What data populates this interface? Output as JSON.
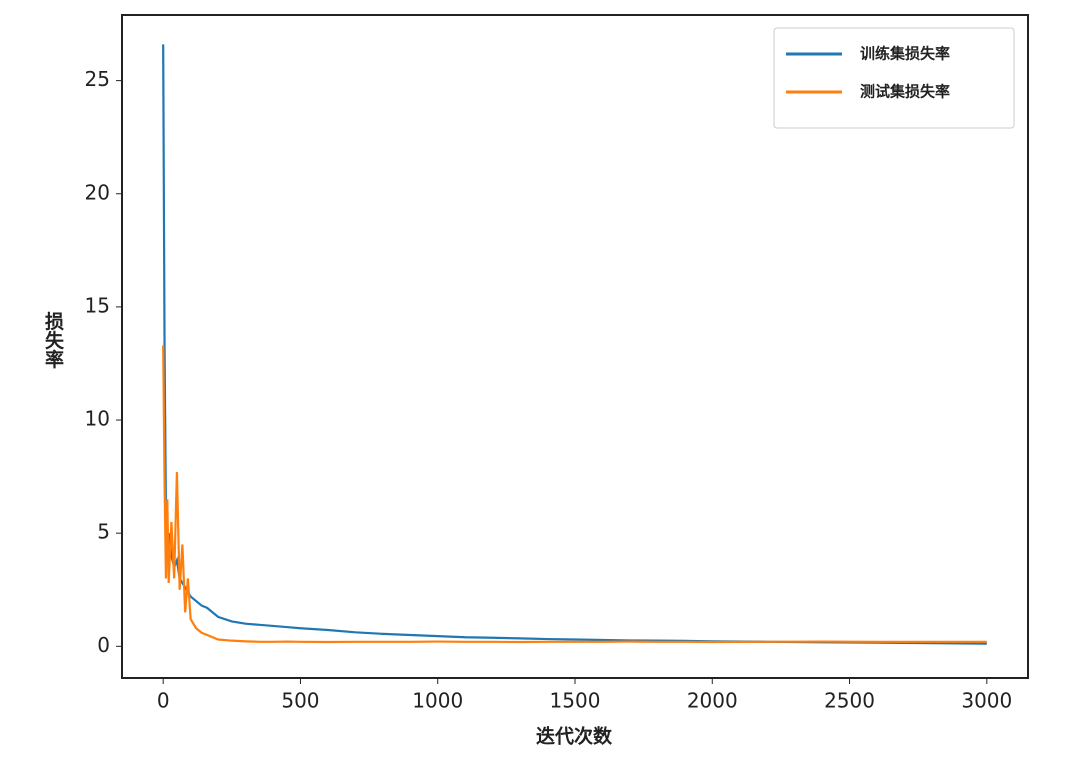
{
  "chart_data": {
    "type": "line",
    "xlabel": "迭代次数",
    "ylabel": "损失率",
    "x": [
      0,
      5,
      10,
      15,
      20,
      30,
      40,
      50,
      60,
      70,
      80,
      90,
      100,
      120,
      140,
      160,
      180,
      200,
      250,
      300,
      350,
      400,
      450,
      500,
      600,
      700,
      800,
      900,
      1000,
      1100,
      1200,
      1300,
      1400,
      1500,
      1600,
      1700,
      1800,
      1900,
      2000,
      2200,
      2400,
      2600,
      2800,
      3000
    ],
    "series": [
      {
        "name": "训练集损失率",
        "color": "#1f77b4",
        "values": [
          26.6,
          13.3,
          6.0,
          4.5,
          5.0,
          4.0,
          3.5,
          3.8,
          3.0,
          2.8,
          2.6,
          2.4,
          2.2,
          2.0,
          1.8,
          1.7,
          1.5,
          1.3,
          1.1,
          1.0,
          0.95,
          0.9,
          0.85,
          0.8,
          0.72,
          0.62,
          0.55,
          0.5,
          0.45,
          0.4,
          0.38,
          0.35,
          0.32,
          0.3,
          0.28,
          0.26,
          0.25,
          0.24,
          0.22,
          0.2,
          0.18,
          0.16,
          0.14,
          0.12
        ]
      },
      {
        "name": "测试集损失率",
        "color": "#ff7f0e",
        "values": [
          13.3,
          7.3,
          3.0,
          6.5,
          2.8,
          5.5,
          3.0,
          7.7,
          2.5,
          4.5,
          1.5,
          3.0,
          1.2,
          0.8,
          0.6,
          0.5,
          0.4,
          0.3,
          0.25,
          0.22,
          0.2,
          0.2,
          0.21,
          0.2,
          0.19,
          0.2,
          0.2,
          0.2,
          0.21,
          0.2,
          0.2,
          0.19,
          0.2,
          0.2,
          0.2,
          0.21,
          0.2,
          0.2,
          0.19,
          0.2,
          0.21,
          0.2,
          0.2,
          0.2
        ]
      }
    ],
    "xlim": [
      -150,
      3150
    ],
    "ylim": [
      -1.4,
      27.9
    ],
    "xticks": [
      0,
      500,
      1000,
      1500,
      2000,
      2500,
      3000
    ],
    "yticks": [
      0,
      5,
      10,
      15,
      20,
      25
    ],
    "grid": false,
    "legend": "upper right"
  }
}
